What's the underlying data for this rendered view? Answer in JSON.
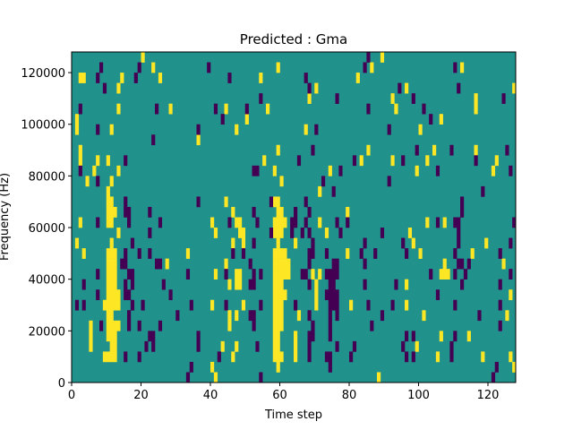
{
  "chart_data": {
    "type": "heatmap",
    "title": "Predicted : Gma",
    "xlabel": "Time step",
    "ylabel": "Frequency (Hz)",
    "xlim": [
      0,
      128
    ],
    "ylim": [
      0,
      128000
    ],
    "x_bins": 128,
    "y_bins": 32,
    "y_bin_size": 4000,
    "xticks": [
      "0",
      "20",
      "40",
      "60",
      "80",
      "100",
      "120"
    ],
    "xtick_values": [
      0,
      20,
      40,
      60,
      80,
      100,
      120
    ],
    "yticks": [
      "0",
      "20000",
      "40000",
      "60000",
      "80000",
      "100000",
      "120000"
    ],
    "ytick_values": [
      0,
      20000,
      40000,
      60000,
      80000,
      100000,
      120000
    ],
    "colors": {
      "background": "#21918c",
      "positive": "#fde725",
      "negative": "#440154"
    },
    "value_legend": {
      "background": 0,
      "positive": 1,
      "negative": -1
    },
    "cells_format": "[time_step, frequency_bin_index, run_length]",
    "positive_cells": [
      [
        20,
        31
      ],
      [
        89,
        31
      ],
      [
        23,
        30
      ],
      [
        59,
        30
      ],
      [
        86,
        30
      ],
      [
        112,
        30
      ],
      [
        2,
        29,
        2
      ],
      [
        14,
        29
      ],
      [
        25,
        29
      ],
      [
        54,
        29
      ],
      [
        82,
        29
      ],
      [
        13,
        28
      ],
      [
        70,
        28
      ],
      [
        96,
        28
      ],
      [
        127,
        28
      ],
      [
        68,
        27
      ],
      [
        92,
        27
      ],
      [
        116,
        27
      ],
      [
        13,
        26
      ],
      [
        28,
        26
      ],
      [
        44,
        26
      ],
      [
        56,
        26
      ],
      [
        93,
        26
      ],
      [
        116,
        26
      ],
      [
        1,
        25
      ],
      [
        50,
        25
      ],
      [
        106,
        25
      ],
      [
        1,
        24
      ],
      [
        11,
        24
      ],
      [
        47,
        24
      ],
      [
        67,
        24
      ],
      [
        100,
        24
      ],
      [
        36,
        23
      ],
      [
        2,
        22
      ],
      [
        59,
        22
      ],
      [
        85,
        22
      ],
      [
        104,
        22
      ],
      [
        116,
        22
      ],
      [
        2,
        21
      ],
      [
        7,
        21
      ],
      [
        10,
        21
      ],
      [
        55,
        21
      ],
      [
        83,
        21
      ],
      [
        92,
        21
      ],
      [
        102,
        21
      ],
      [
        122,
        21
      ],
      [
        6,
        20
      ],
      [
        13,
        20
      ],
      [
        58,
        20
      ],
      [
        74,
        20
      ],
      [
        99,
        20
      ],
      [
        121,
        20
      ],
      [
        4,
        19
      ],
      [
        11,
        19
      ],
      [
        60,
        19
      ],
      [
        10,
        18
      ],
      [
        71,
        18
      ],
      [
        10,
        17,
        2
      ],
      [
        44,
        17
      ],
      [
        58,
        17,
        2
      ],
      [
        10,
        16,
        3
      ],
      [
        46,
        16
      ],
      [
        59,
        16,
        2
      ],
      [
        79,
        16
      ],
      [
        2,
        15
      ],
      [
        10,
        15,
        2
      ],
      [
        40,
        15
      ],
      [
        47,
        15,
        2
      ],
      [
        58,
        15,
        4
      ],
      [
        71,
        15
      ],
      [
        102,
        15
      ],
      [
        107,
        15
      ],
      [
        13,
        14
      ],
      [
        41,
        14
      ],
      [
        48,
        14,
        2
      ],
      [
        58,
        14,
        3
      ],
      [
        73,
        14
      ],
      [
        97,
        14
      ],
      [
        1,
        13
      ],
      [
        11,
        13
      ],
      [
        46,
        13
      ],
      [
        49,
        13
      ],
      [
        59,
        13
      ],
      [
        64,
        13
      ],
      [
        98,
        13
      ],
      [
        119,
        13
      ],
      [
        3,
        12
      ],
      [
        10,
        12,
        3
      ],
      [
        33,
        12
      ],
      [
        58,
        12,
        4
      ],
      [
        79,
        12
      ],
      [
        100,
        12
      ],
      [
        115,
        12
      ],
      [
        10,
        11,
        3
      ],
      [
        27,
        11
      ],
      [
        44,
        11
      ],
      [
        58,
        11,
        5
      ],
      [
        107,
        11
      ],
      [
        124,
        11
      ],
      [
        10,
        10,
        3
      ],
      [
        41,
        10
      ],
      [
        47,
        10,
        2
      ],
      [
        58,
        10,
        5
      ],
      [
        69,
        10
      ],
      [
        71,
        10
      ],
      [
        106,
        10,
        3
      ],
      [
        10,
        9,
        3
      ],
      [
        45,
        9
      ],
      [
        47,
        9,
        2
      ],
      [
        58,
        9,
        3
      ],
      [
        70,
        9
      ],
      [
        96,
        9
      ],
      [
        10,
        8,
        4
      ],
      [
        58,
        8,
        4
      ],
      [
        70,
        8
      ],
      [
        126,
        8
      ],
      [
        9,
        7,
        5
      ],
      [
        40,
        7
      ],
      [
        49,
        7
      ],
      [
        58,
        7,
        3
      ],
      [
        70,
        7
      ],
      [
        80,
        7
      ],
      [
        96,
        7
      ],
      [
        10,
        6,
        2
      ],
      [
        45,
        6
      ],
      [
        47,
        6
      ],
      [
        58,
        6,
        3
      ],
      [
        65,
        6
      ],
      [
        101,
        6
      ],
      [
        125,
        6
      ],
      [
        5,
        5
      ],
      [
        10,
        5,
        4
      ],
      [
        45,
        5
      ],
      [
        58,
        5,
        3
      ],
      [
        5,
        4
      ],
      [
        10,
        4,
        3
      ],
      [
        58,
        4,
        2
      ],
      [
        64,
        4
      ],
      [
        106,
        4
      ],
      [
        114,
        4
      ],
      [
        5,
        3
      ],
      [
        11,
        3,
        2
      ],
      [
        43,
        3
      ],
      [
        47,
        3
      ],
      [
        58,
        3,
        2
      ],
      [
        64,
        3
      ],
      [
        99,
        3
      ],
      [
        9,
        2,
        4
      ],
      [
        46,
        2
      ],
      [
        58,
        2,
        3
      ],
      [
        64,
        2
      ],
      [
        105,
        2
      ],
      [
        118,
        2
      ],
      [
        126,
        2
      ],
      [
        40,
        1
      ],
      [
        59,
        1
      ],
      [
        127,
        1
      ],
      [
        41,
        0
      ],
      [
        88,
        0
      ]
    ],
    "negative_cells": [
      [
        85,
        31
      ],
      [
        8,
        30
      ],
      [
        19,
        30
      ],
      [
        39,
        30
      ],
      [
        84,
        30
      ],
      [
        110,
        30
      ],
      [
        7,
        29
      ],
      [
        18,
        29
      ],
      [
        45,
        29
      ],
      [
        67,
        29
      ],
      [
        9,
        28
      ],
      [
        68,
        28
      ],
      [
        94,
        28
      ],
      [
        111,
        28
      ],
      [
        54,
        27
      ],
      [
        76,
        27
      ],
      [
        98,
        27
      ],
      [
        124,
        27
      ],
      [
        2,
        26
      ],
      [
        24,
        26
      ],
      [
        41,
        26
      ],
      [
        50,
        26
      ],
      [
        85,
        26
      ],
      [
        101,
        26
      ],
      [
        43,
        25
      ],
      [
        103,
        25
      ],
      [
        7,
        24
      ],
      [
        36,
        24
      ],
      [
        70,
        24
      ],
      [
        91,
        24
      ],
      [
        23,
        23
      ],
      [
        69,
        22
      ],
      [
        99,
        22
      ],
      [
        109,
        22
      ],
      [
        125,
        22
      ],
      [
        15,
        21
      ],
      [
        65,
        21
      ],
      [
        81,
        21
      ],
      [
        95,
        21
      ],
      [
        116,
        21
      ],
      [
        2,
        20
      ],
      [
        52,
        20,
        2
      ],
      [
        77,
        20
      ],
      [
        105,
        20
      ],
      [
        126,
        20
      ],
      [
        7,
        19
      ],
      [
        72,
        19
      ],
      [
        91,
        19
      ],
      [
        75,
        18
      ],
      [
        118,
        18
      ],
      [
        15,
        17
      ],
      [
        36,
        17
      ],
      [
        57,
        17
      ],
      [
        67,
        17
      ],
      [
        112,
        17
      ],
      [
        15,
        16,
        2
      ],
      [
        22,
        16
      ],
      [
        52,
        16
      ],
      [
        64,
        16
      ],
      [
        68,
        16
      ],
      [
        112,
        16
      ],
      [
        7,
        15
      ],
      [
        16,
        15
      ],
      [
        25,
        15
      ],
      [
        45,
        15
      ],
      [
        53,
        15
      ],
      [
        63,
        15,
        2
      ],
      [
        67,
        15
      ],
      [
        76,
        15
      ],
      [
        79,
        15
      ],
      [
        105,
        15
      ],
      [
        110,
        15,
        2
      ],
      [
        127,
        15
      ],
      [
        22,
        14
      ],
      [
        57,
        14
      ],
      [
        63,
        14
      ],
      [
        66,
        14
      ],
      [
        68,
        14
      ],
      [
        77,
        14
      ],
      [
        89,
        14
      ],
      [
        111,
        14
      ],
      [
        17,
        13
      ],
      [
        52,
        13
      ],
      [
        69,
        13
      ],
      [
        84,
        13
      ],
      [
        95,
        13
      ],
      [
        111,
        13
      ],
      [
        126,
        13
      ],
      [
        15,
        12
      ],
      [
        19,
        12
      ],
      [
        22,
        12
      ],
      [
        46,
        12
      ],
      [
        49,
        12
      ],
      [
        68,
        12,
        2
      ],
      [
        73,
        12
      ],
      [
        83,
        12
      ],
      [
        87,
        12
      ],
      [
        96,
        12
      ],
      [
        110,
        12
      ],
      [
        123,
        12
      ],
      [
        14,
        11,
        2
      ],
      [
        24,
        11,
        2
      ],
      [
        51,
        11
      ],
      [
        68,
        11
      ],
      [
        75,
        11,
        2
      ],
      [
        84,
        11
      ],
      [
        111,
        11,
        2
      ],
      [
        114,
        11
      ],
      [
        7,
        10
      ],
      [
        16,
        10,
        2
      ],
      [
        33,
        10
      ],
      [
        44,
        10
      ],
      [
        52,
        10
      ],
      [
        54,
        10
      ],
      [
        66,
        10,
        2
      ],
      [
        73,
        10,
        4
      ],
      [
        103,
        10
      ],
      [
        110,
        10
      ],
      [
        113,
        10
      ],
      [
        126,
        10
      ],
      [
        3,
        9
      ],
      [
        15,
        9
      ],
      [
        17,
        9
      ],
      [
        26,
        9
      ],
      [
        51,
        9,
        2
      ],
      [
        68,
        9
      ],
      [
        74,
        9,
        2
      ],
      [
        84,
        9
      ],
      [
        93,
        9
      ],
      [
        112,
        9
      ],
      [
        123,
        9
      ],
      [
        7,
        8
      ],
      [
        15,
        8,
        2
      ],
      [
        28,
        8
      ],
      [
        73,
        8,
        4
      ],
      [
        105,
        8
      ],
      [
        1,
        7
      ],
      [
        3,
        7
      ],
      [
        17,
        7
      ],
      [
        20,
        7
      ],
      [
        34,
        7
      ],
      [
        44,
        7
      ],
      [
        54,
        7
      ],
      [
        64,
        7
      ],
      [
        74,
        7,
        3
      ],
      [
        85,
        7
      ],
      [
        92,
        7
      ],
      [
        110,
        7
      ],
      [
        123,
        7
      ],
      [
        16,
        6
      ],
      [
        30,
        6
      ],
      [
        51,
        6,
        2
      ],
      [
        68,
        6
      ],
      [
        74,
        6
      ],
      [
        76,
        6
      ],
      [
        89,
        6
      ],
      [
        117,
        6
      ],
      [
        8,
        5
      ],
      [
        16,
        5
      ],
      [
        19,
        5
      ],
      [
        25,
        5
      ],
      [
        52,
        5
      ],
      [
        69,
        5
      ],
      [
        74,
        5
      ],
      [
        86,
        5
      ],
      [
        123,
        5
      ],
      [
        22,
        4,
        2
      ],
      [
        36,
        4
      ],
      [
        68,
        4,
        2
      ],
      [
        74,
        4
      ],
      [
        96,
        4
      ],
      [
        98,
        4
      ],
      [
        110,
        4
      ],
      [
        21,
        3
      ],
      [
        23,
        3
      ],
      [
        36,
        3
      ],
      [
        53,
        3
      ],
      [
        68,
        3
      ],
      [
        76,
        3
      ],
      [
        81,
        3
      ],
      [
        95,
        3
      ],
      [
        109,
        3
      ],
      [
        15,
        2
      ],
      [
        19,
        2
      ],
      [
        42,
        2
      ],
      [
        68,
        2
      ],
      [
        73,
        2,
        2
      ],
      [
        80,
        2
      ],
      [
        96,
        2
      ],
      [
        98,
        2
      ],
      [
        109,
        2
      ],
      [
        34,
        1
      ],
      [
        74,
        1
      ],
      [
        122,
        1
      ],
      [
        33,
        0
      ],
      [
        54,
        0
      ],
      [
        121,
        0
      ]
    ]
  }
}
